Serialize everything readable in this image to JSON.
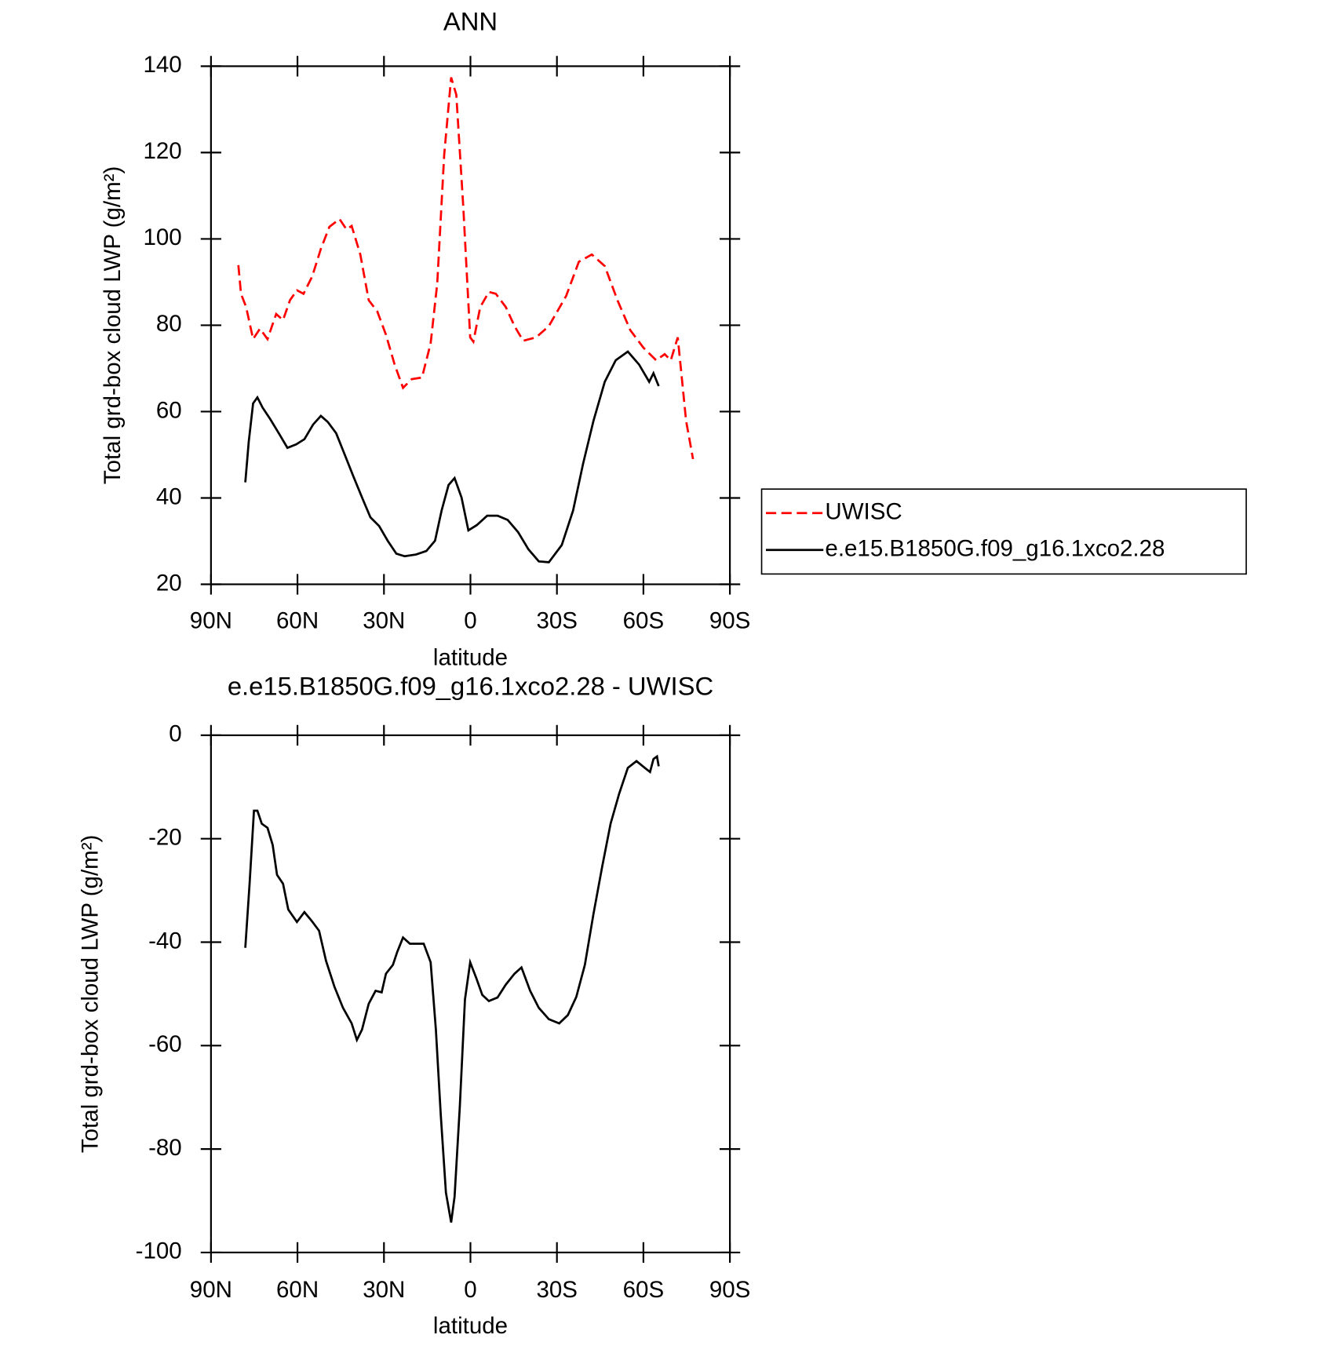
{
  "chart_data": [
    {
      "type": "line",
      "title": "ANN",
      "xlabel": "latitude",
      "ylabel": "Total grd-box cloud LWP (g/m²)",
      "xlim": [
        90,
        -90
      ],
      "xticks": [
        {
          "value": 90,
          "label": "90N"
        },
        {
          "value": 60,
          "label": "60N"
        },
        {
          "value": 30,
          "label": "30N"
        },
        0,
        {
          "value": -30,
          "label": "30S"
        },
        {
          "value": -60,
          "label": "60S"
        },
        {
          "value": -90,
          "label": "90S"
        }
      ],
      "ylim": [
        20,
        140
      ],
      "yticks": [
        20,
        40,
        60,
        80,
        100,
        120,
        140
      ],
      "legend": "right",
      "series": [
        {
          "name": "UWISC",
          "color": "#ff0000",
          "dash": "dashed",
          "x": [
            80.5,
            79.6,
            77.8,
            75.4,
            73.0,
            70.4,
            67.4,
            65.0,
            62.6,
            60.2,
            57.9,
            54.9,
            51.9,
            48.9,
            45.4,
            43.0,
            41.2,
            38.2,
            35.3,
            32.3,
            29.3,
            26.3,
            23.4,
            20.4,
            16.8,
            13.8,
            11.5,
            9.1,
            6.7,
            4.9,
            2.5,
            0.1,
            -1.0,
            -3.4,
            -6.4,
            -8.8,
            -12.3,
            -15.3,
            -18.3,
            -22.8,
            -27.2,
            -33.2,
            -37.6,
            -42.1,
            -46.6,
            -51.0,
            -55.5,
            -60.0,
            -64.4,
            -67.4,
            -69.5,
            -71.9,
            -73.3,
            -74.8,
            -77.2
          ],
          "values": [
            93.9,
            87.3,
            84.2,
            76.8,
            79.2,
            76.8,
            82.6,
            81.2,
            85.8,
            88.1,
            87.3,
            91.3,
            97.7,
            102.8,
            104.6,
            102.2,
            103.0,
            96.4,
            85.8,
            83.2,
            77.8,
            70.9,
            65.5,
            67.5,
            67.9,
            75.8,
            89.7,
            119.5,
            137.4,
            133.4,
            107.6,
            77.2,
            76.2,
            84.2,
            87.7,
            87.3,
            84.2,
            79.8,
            76.4,
            77.2,
            79.8,
            86.8,
            94.7,
            96.4,
            93.7,
            85.8,
            78.8,
            74.8,
            71.9,
            73.3,
            71.9,
            77.2,
            67.9,
            57.9,
            49.0
          ]
        },
        {
          "name": "e.e15.B1850G.f09_g16.1xco2.28",
          "color": "#000000",
          "dash": "solid",
          "x": [
            78.1,
            76.9,
            75.4,
            73.9,
            72.1,
            69.5,
            66.5,
            63.5,
            60.5,
            57.6,
            54.6,
            51.9,
            49.5,
            46.6,
            43.6,
            40.6,
            37.6,
            34.7,
            31.7,
            28.7,
            25.7,
            22.8,
            18.9,
            15.3,
            12.3,
            10.0,
            7.6,
            5.5,
            3.1,
            0.7,
            -2.2,
            -5.8,
            -9.4,
            -12.9,
            -16.5,
            -20.1,
            -23.7,
            -27.2,
            -31.7,
            -35.6,
            -39.1,
            -42.7,
            -46.6,
            -50.4,
            -54.6,
            -58.5,
            -62.0,
            -63.5,
            -65.3
          ],
          "values": [
            43.6,
            53.0,
            61.9,
            63.3,
            60.9,
            58.3,
            55.0,
            51.6,
            52.4,
            53.6,
            57.0,
            59.0,
            57.6,
            55.0,
            50.0,
            45.0,
            40.1,
            35.5,
            33.5,
            30.1,
            27.1,
            26.5,
            26.9,
            27.7,
            30.1,
            37.1,
            43.0,
            44.6,
            40.1,
            32.5,
            33.7,
            35.9,
            35.9,
            34.9,
            32.1,
            28.1,
            25.3,
            25.1,
            29.1,
            37.1,
            48.0,
            57.9,
            66.9,
            71.9,
            73.9,
            70.9,
            66.9,
            68.9,
            65.9
          ]
        }
      ]
    },
    {
      "type": "line",
      "title": "e.e15.B1850G.f09_g16.1xco2.28 - UWISC",
      "xlabel": "latitude",
      "ylabel": "Total grd-box cloud LWP (g/m²)",
      "xlim": [
        90,
        -90
      ],
      "xticks": [
        {
          "value": 90,
          "label": "90N"
        },
        {
          "value": 60,
          "label": "60N"
        },
        {
          "value": 30,
          "label": "30N"
        },
        0,
        {
          "value": -30,
          "label": "30S"
        },
        {
          "value": -60,
          "label": "60S"
        },
        {
          "value": -90,
          "label": "90S"
        }
      ],
      "ylim": [
        -100,
        0
      ],
      "yticks": [
        -100,
        -80,
        -60,
        -40,
        -20,
        0
      ],
      "series": [
        {
          "color": "#000000",
          "dash": "solid",
          "x": [
            78.1,
            76.6,
            75.1,
            73.9,
            72.4,
            70.4,
            68.6,
            67.1,
            65.0,
            63.2,
            60.2,
            57.6,
            55.2,
            52.5,
            50.1,
            47.2,
            44.2,
            41.2,
            39.4,
            37.6,
            35.3,
            32.9,
            30.8,
            29.3,
            26.9,
            25.4,
            23.4,
            21.0,
            18.3,
            16.2,
            13.8,
            12.0,
            10.3,
            8.5,
            6.7,
            5.5,
            3.7,
            1.9,
            0.1,
            -2.0,
            -4.1,
            -6.4,
            -9.4,
            -12.3,
            -15.3,
            -17.7,
            -20.7,
            -23.7,
            -27.2,
            -30.8,
            -33.8,
            -36.7,
            -39.7,
            -42.7,
            -45.7,
            -48.6,
            -51.6,
            -54.6,
            -57.6,
            -60.5,
            -62.3,
            -63.5,
            -64.7,
            -65.3
          ],
          "values": [
            -41.1,
            -28.7,
            -14.6,
            -14.6,
            -17.1,
            -17.9,
            -21.2,
            -27.0,
            -28.7,
            -33.7,
            -36.1,
            -34.2,
            -35.8,
            -37.8,
            -43.6,
            -48.6,
            -52.7,
            -55.7,
            -58.9,
            -56.9,
            -51.9,
            -49.4,
            -49.7,
            -46.1,
            -44.4,
            -41.9,
            -39.1,
            -40.3,
            -40.3,
            -40.3,
            -43.9,
            -56.9,
            -73.4,
            -88.4,
            -94.2,
            -89.2,
            -71.8,
            -51.1,
            -43.9,
            -46.9,
            -50.2,
            -51.4,
            -50.7,
            -48.2,
            -46.1,
            -44.9,
            -49.4,
            -52.7,
            -54.9,
            -55.7,
            -54.1,
            -50.6,
            -44.4,
            -34.5,
            -25.4,
            -17.1,
            -11.3,
            -6.3,
            -5.0,
            -6.3,
            -7.1,
            -4.6,
            -4.1,
            -6.0
          ]
        }
      ]
    }
  ]
}
